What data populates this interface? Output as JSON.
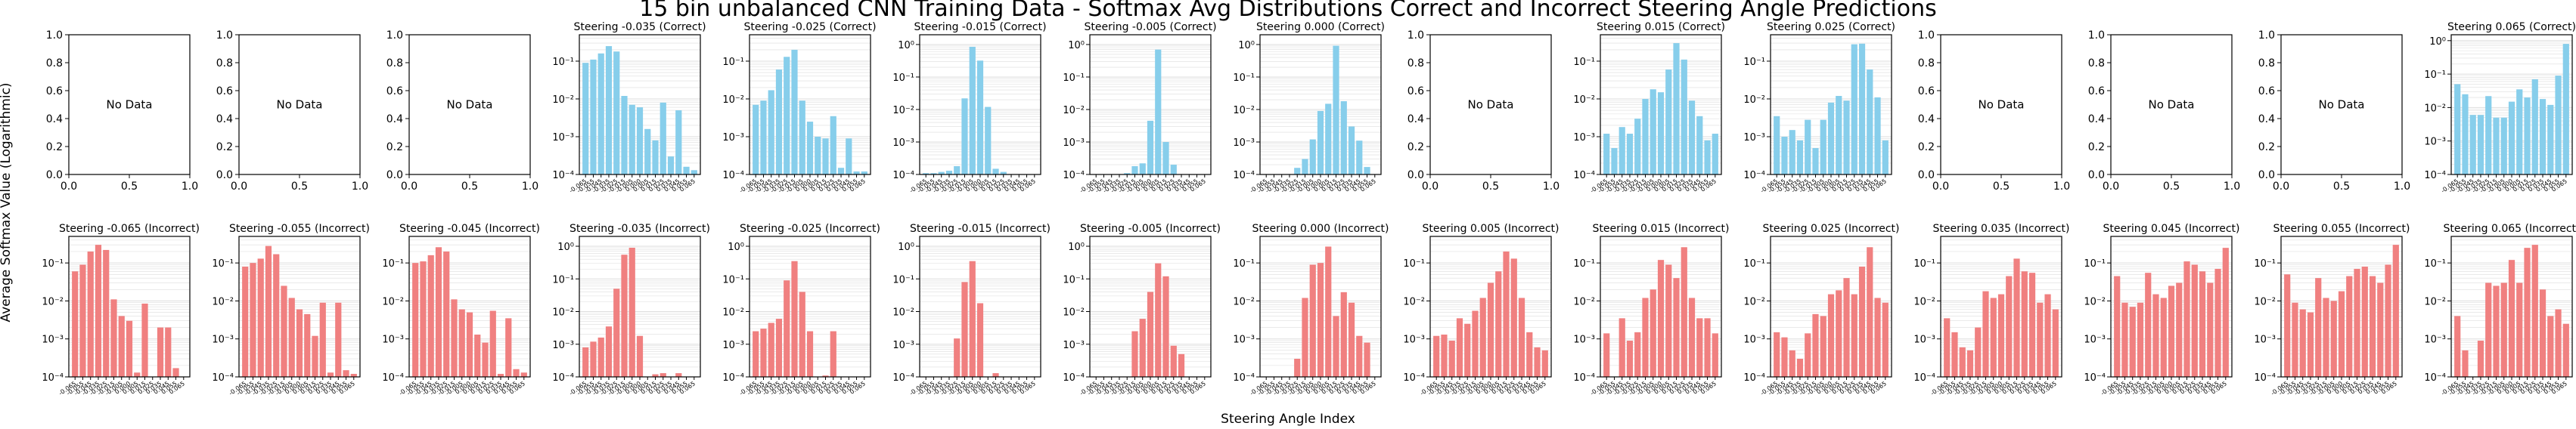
{
  "figure": {
    "title": "15 bin unbalanced CNN Training Data - Softmax Avg Distributions Correct and Incorrect Steering Angle Predictions",
    "xlabel": "Steering Angle Index",
    "ylabel": "Average Softmax Value (Logarithmic)",
    "no_data_text": "No Data",
    "correct_color": "#87ceeb",
    "incorrect_color": "#f08080",
    "empty_xticks": [
      "0.0",
      "0.5",
      "1.0"
    ],
    "empty_yticks": [
      "0.0",
      "0.2",
      "0.4",
      "0.6",
      "0.8",
      "1.0"
    ],
    "log_ticks": [
      "10⁰",
      "10⁻¹",
      "10⁻²",
      "10⁻³",
      "10⁻⁴"
    ]
  },
  "chart_data": [
    {
      "row": "correct",
      "type": "bar",
      "title": "",
      "no_data": true
    },
    {
      "row": "correct",
      "type": "bar",
      "title": "",
      "no_data": true
    },
    {
      "row": "correct",
      "type": "bar",
      "title": "",
      "no_data": true
    },
    {
      "row": "correct",
      "type": "bar",
      "title": "Steering -0.035 (Correct)",
      "yscale": "log",
      "ylim": [
        0.0001,
        0.5
      ],
      "categories": [
        "-0.065",
        "-0.055",
        "-0.045",
        "-0.035",
        "-0.025",
        "-0.015",
        "-0.005",
        "0.000",
        "0.005",
        "0.015",
        "0.025",
        "0.035",
        "0.045",
        "0.055",
        "0.065"
      ],
      "values": [
        0.09,
        0.11,
        0.16,
        0.25,
        0.18,
        0.012,
        0.007,
        0.006,
        0.0016,
        0.0008,
        0.008,
        0.0003,
        0.005,
        0.00016,
        0.00013
      ]
    },
    {
      "row": "correct",
      "type": "bar",
      "title": "Steering -0.025 (Correct)",
      "yscale": "log",
      "ylim": [
        0.0001,
        0.5
      ],
      "categories": [
        "-0.065",
        "-0.055",
        "-0.045",
        "-0.035",
        "-0.025",
        "-0.015",
        "-0.005",
        "0.000",
        "0.005",
        "0.015",
        "0.025",
        "0.035",
        "0.045",
        "0.055",
        "0.065"
      ],
      "values": [
        0.007,
        0.009,
        0.017,
        0.06,
        0.13,
        0.2,
        0.009,
        0.0025,
        0.001,
        0.0009,
        0.0035,
        0.00015,
        0.0009,
        0.00012,
        0.00012
      ]
    },
    {
      "row": "correct",
      "type": "bar",
      "title": "Steering -0.015 (Correct)",
      "yscale": "log",
      "ylim": [
        0.0001,
        2
      ],
      "categories": [
        "-0.065",
        "-0.055",
        "-0.045",
        "-0.035",
        "-0.025",
        "-0.015",
        "-0.005",
        "0.000",
        "0.005",
        "0.015",
        "0.025",
        "0.035",
        "0.045",
        "0.055",
        "0.065"
      ],
      "values": [
        0.00011,
        0.00011,
        0.00012,
        0.00013,
        0.00018,
        0.022,
        0.85,
        0.32,
        0.012,
        0.00015,
        0.00012,
        0.0001,
        0.0001,
        0.0001,
        0.0001
      ]
    },
    {
      "row": "correct",
      "type": "bar",
      "title": "Steering -0.005 (Correct)",
      "yscale": "log",
      "ylim": [
        0.0001,
        2
      ],
      "categories": [
        "-0.065",
        "-0.055",
        "-0.045",
        "-0.035",
        "-0.025",
        "-0.015",
        "-0.005",
        "0.000",
        "0.005",
        "0.015",
        "0.025",
        "0.035",
        "0.045",
        "0.055",
        "0.065"
      ],
      "values": [
        0.0001,
        0.0001,
        0.0001,
        0.0001,
        0.00011,
        0.00018,
        0.00022,
        0.0045,
        0.7,
        0.001,
        0.0002,
        0.0001,
        0.0001,
        0.0001,
        0.0001
      ]
    },
    {
      "row": "correct",
      "type": "bar",
      "title": "Steering 0.000 (Correct)",
      "yscale": "log",
      "ylim": [
        0.0001,
        2
      ],
      "categories": [
        "-0.065",
        "-0.055",
        "-0.045",
        "-0.035",
        "-0.025",
        "-0.015",
        "-0.005",
        "0.000",
        "0.005",
        "0.015",
        "0.025",
        "0.035",
        "0.045",
        "0.055",
        "0.065"
      ],
      "values": [
        0.0001,
        0.0001,
        0.0001,
        0.0001,
        0.00016,
        0.0003,
        0.0012,
        0.009,
        0.015,
        0.92,
        0.018,
        0.003,
        0.0011,
        0.00017,
        0.0001
      ]
    },
    {
      "row": "correct",
      "type": "bar",
      "title": "",
      "no_data": true
    },
    {
      "row": "correct",
      "type": "bar",
      "title": "Steering 0.015 (Correct)",
      "yscale": "log",
      "ylim": [
        0.0001,
        0.5
      ],
      "categories": [
        "-0.065",
        "-0.055",
        "-0.045",
        "-0.035",
        "-0.025",
        "-0.015",
        "-0.005",
        "0.000",
        "0.005",
        "0.015",
        "0.025",
        "0.035",
        "0.045",
        "0.055",
        "0.065"
      ],
      "values": [
        0.0012,
        0.0005,
        0.0018,
        0.0012,
        0.003,
        0.01,
        0.018,
        0.015,
        0.06,
        0.3,
        0.11,
        0.009,
        0.0035,
        0.0008,
        0.0012
      ]
    },
    {
      "row": "correct",
      "type": "bar",
      "title": "Steering 0.025 (Correct)",
      "yscale": "log",
      "ylim": [
        0.0001,
        0.5
      ],
      "categories": [
        "-0.065",
        "-0.055",
        "-0.045",
        "-0.035",
        "-0.025",
        "-0.015",
        "-0.005",
        "0.000",
        "0.005",
        "0.015",
        "0.025",
        "0.035",
        "0.045",
        "0.055",
        "0.065"
      ],
      "values": [
        0.0035,
        0.001,
        0.0015,
        0.0008,
        0.0028,
        0.0005,
        0.0028,
        0.008,
        0.012,
        0.009,
        0.28,
        0.29,
        0.06,
        0.011,
        0.0008
      ]
    },
    {
      "row": "correct",
      "type": "bar",
      "title": "",
      "no_data": true
    },
    {
      "row": "correct",
      "type": "bar",
      "title": "",
      "no_data": true
    },
    {
      "row": "correct",
      "type": "bar",
      "title": "",
      "no_data": true
    },
    {
      "row": "correct",
      "type": "bar",
      "title": "Steering 0.065 (Correct)",
      "yscale": "log",
      "ylim": [
        0.0001,
        1.5
      ],
      "categories": [
        "-0.065",
        "-0.055",
        "-0.045",
        "-0.035",
        "-0.025",
        "-0.015",
        "-0.005",
        "0.000",
        "0.005",
        "0.015",
        "0.025",
        "0.035",
        "0.045",
        "0.055",
        "0.065"
      ],
      "values": [
        0.05,
        0.025,
        0.006,
        0.006,
        0.022,
        0.005,
        0.005,
        0.015,
        0.035,
        0.02,
        0.07,
        0.018,
        0.012,
        0.09,
        0.8
      ]
    },
    {
      "row": "incorrect",
      "type": "bar",
      "title": "Steering -0.065 (Incorrect)",
      "yscale": "log",
      "ylim": [
        0.0001,
        0.5
      ],
      "categories": [
        "-0.065",
        "-0.055",
        "-0.045",
        "-0.035",
        "-0.025",
        "-0.015",
        "-0.005",
        "0.000",
        "0.005",
        "0.015",
        "0.025",
        "0.035",
        "0.045",
        "0.055",
        "0.065"
      ],
      "values": [
        0.06,
        0.09,
        0.2,
        0.3,
        0.22,
        0.011,
        0.004,
        0.003,
        0.00013,
        0.0085,
        0.0001,
        0.002,
        0.002,
        0.00017,
        0.0001
      ]
    },
    {
      "row": "incorrect",
      "type": "bar",
      "title": "Steering -0.055 (Incorrect)",
      "yscale": "log",
      "ylim": [
        0.0001,
        0.5
      ],
      "categories": [
        "-0.065",
        "-0.055",
        "-0.045",
        "-0.035",
        "-0.025",
        "-0.015",
        "-0.005",
        "0.000",
        "0.005",
        "0.015",
        "0.025",
        "0.035",
        "0.045",
        "0.055",
        "0.065"
      ],
      "values": [
        0.08,
        0.1,
        0.13,
        0.28,
        0.17,
        0.025,
        0.012,
        0.006,
        0.0045,
        0.0012,
        0.009,
        0.00013,
        0.009,
        0.00015,
        0.00012
      ]
    },
    {
      "row": "incorrect",
      "type": "bar",
      "title": "Steering -0.045 (Incorrect)",
      "yscale": "log",
      "ylim": [
        0.0001,
        0.5
      ],
      "categories": [
        "-0.065",
        "-0.055",
        "-0.045",
        "-0.035",
        "-0.025",
        "-0.015",
        "-0.005",
        "0.000",
        "0.005",
        "0.015",
        "0.025",
        "0.035",
        "0.045",
        "0.055",
        "0.065"
      ],
      "values": [
        0.1,
        0.11,
        0.16,
        0.26,
        0.2,
        0.011,
        0.006,
        0.005,
        0.0013,
        0.0008,
        0.0055,
        0.00012,
        0.0035,
        0.00016,
        0.00013
      ]
    },
    {
      "row": "incorrect",
      "type": "bar",
      "title": "Steering -0.035 (Incorrect)",
      "yscale": "log",
      "ylim": [
        0.0001,
        2
      ],
      "categories": [
        "-0.065",
        "-0.055",
        "-0.045",
        "-0.035",
        "-0.025",
        "-0.015",
        "-0.005",
        "0.000",
        "0.005",
        "0.015",
        "0.025",
        "0.035",
        "0.045",
        "0.055",
        "0.065"
      ],
      "values": [
        0.0008,
        0.0012,
        0.0016,
        0.0035,
        0.05,
        0.55,
        0.9,
        0.0018,
        0.0001,
        0.00012,
        0.00013,
        0.0001,
        0.00013,
        0.0001,
        0.0001
      ]
    },
    {
      "row": "incorrect",
      "type": "bar",
      "title": "Steering -0.025 (Incorrect)",
      "yscale": "log",
      "ylim": [
        0.0001,
        2
      ],
      "categories": [
        "-0.065",
        "-0.055",
        "-0.045",
        "-0.035",
        "-0.025",
        "-0.015",
        "-0.005",
        "0.000",
        "0.005",
        "0.015",
        "0.025",
        "0.035",
        "0.045",
        "0.055",
        "0.065"
      ],
      "values": [
        0.0025,
        0.003,
        0.0045,
        0.006,
        0.09,
        0.35,
        0.04,
        0.0025,
        0.0001,
        0.00011,
        0.0025,
        0.0001,
        0.0001,
        0.0001,
        0.0001
      ]
    },
    {
      "row": "incorrect",
      "type": "bar",
      "title": "Steering -0.015 (Incorrect)",
      "yscale": "log",
      "ylim": [
        0.0001,
        2
      ],
      "categories": [
        "-0.065",
        "-0.055",
        "-0.045",
        "-0.035",
        "-0.025",
        "-0.015",
        "-0.005",
        "0.000",
        "0.005",
        "0.015",
        "0.025",
        "0.035",
        "0.045",
        "0.055",
        "0.065"
      ],
      "values": [
        0.0001,
        0.0001,
        0.0001,
        0.0001,
        0.0015,
        0.08,
        0.35,
        0.018,
        0.0001,
        0.00013,
        0.0001,
        0.0001,
        0.0001,
        0.0001,
        0.0001
      ]
    },
    {
      "row": "incorrect",
      "type": "bar",
      "title": "Steering -0.005 (Incorrect)",
      "yscale": "log",
      "ylim": [
        0.0001,
        2
      ],
      "categories": [
        "-0.065",
        "-0.055",
        "-0.045",
        "-0.035",
        "-0.025",
        "-0.015",
        "-0.005",
        "0.000",
        "0.005",
        "0.015",
        "0.025",
        "0.035",
        "0.045",
        "0.055",
        "0.065"
      ],
      "values": [
        0.0001,
        0.0001,
        0.0001,
        0.0001,
        0.0001,
        0.0025,
        0.006,
        0.04,
        0.3,
        0.12,
        0.0009,
        0.0005,
        0.0001,
        0.0001,
        0.0001
      ]
    },
    {
      "row": "incorrect",
      "type": "bar",
      "title": "Steering 0.000 (Incorrect)",
      "yscale": "log",
      "ylim": [
        0.0001,
        0.5
      ],
      "categories": [
        "-0.065",
        "-0.055",
        "-0.045",
        "-0.035",
        "-0.025",
        "-0.015",
        "-0.005",
        "0.000",
        "0.005",
        "0.015",
        "0.025",
        "0.035",
        "0.045",
        "0.055",
        "0.065"
      ],
      "values": [
        0.0001,
        0.0001,
        0.0001,
        0.0001,
        0.0003,
        0.012,
        0.09,
        0.1,
        0.27,
        0.004,
        0.017,
        0.009,
        0.0012,
        0.0008,
        0.0001
      ]
    },
    {
      "row": "incorrect",
      "type": "bar",
      "title": "Steering 0.005 (Incorrect)",
      "yscale": "log",
      "ylim": [
        0.0001,
        0.5
      ],
      "categories": [
        "-0.065",
        "-0.055",
        "-0.045",
        "-0.035",
        "-0.025",
        "-0.015",
        "-0.005",
        "0.000",
        "0.005",
        "0.015",
        "0.025",
        "0.035",
        "0.045",
        "0.055",
        "0.065"
      ],
      "values": [
        0.0012,
        0.0013,
        0.0009,
        0.0035,
        0.0025,
        0.0055,
        0.012,
        0.03,
        0.06,
        0.2,
        0.13,
        0.012,
        0.0015,
        0.0006,
        0.0005
      ]
    },
    {
      "row": "incorrect",
      "type": "bar",
      "title": "Steering 0.015 (Incorrect)",
      "yscale": "log",
      "ylim": [
        0.0001,
        0.5
      ],
      "categories": [
        "-0.065",
        "-0.055",
        "-0.045",
        "-0.035",
        "-0.025",
        "-0.015",
        "-0.005",
        "0.000",
        "0.005",
        "0.015",
        "0.025",
        "0.035",
        "0.045",
        "0.055",
        "0.065"
      ],
      "values": [
        0.0014,
        0.0001,
        0.0035,
        0.0009,
        0.0015,
        0.012,
        0.02,
        0.12,
        0.09,
        0.04,
        0.26,
        0.012,
        0.0035,
        0.0035,
        0.0014
      ]
    },
    {
      "row": "incorrect",
      "type": "bar",
      "title": "Steering 0.025 (Incorrect)",
      "yscale": "log",
      "ylim": [
        0.0001,
        0.5
      ],
      "categories": [
        "-0.065",
        "-0.055",
        "-0.045",
        "-0.035",
        "-0.025",
        "-0.015",
        "-0.005",
        "0.000",
        "0.005",
        "0.015",
        "0.025",
        "0.035",
        "0.045",
        "0.055",
        "0.065"
      ],
      "values": [
        0.0015,
        0.0011,
        0.0005,
        0.0003,
        0.0014,
        0.0045,
        0.004,
        0.015,
        0.019,
        0.04,
        0.015,
        0.08,
        0.26,
        0.012,
        0.009
      ]
    },
    {
      "row": "incorrect",
      "type": "bar",
      "title": "Steering 0.035 (Incorrect)",
      "yscale": "log",
      "ylim": [
        0.0001,
        0.5
      ],
      "categories": [
        "-0.065",
        "-0.055",
        "-0.045",
        "-0.035",
        "-0.025",
        "-0.015",
        "-0.005",
        "0.000",
        "0.005",
        "0.015",
        "0.025",
        "0.035",
        "0.045",
        "0.055",
        "0.065"
      ],
      "values": [
        0.0035,
        0.0015,
        0.0006,
        0.0005,
        0.002,
        0.018,
        0.012,
        0.015,
        0.045,
        0.13,
        0.06,
        0.055,
        0.009,
        0.015,
        0.006
      ]
    },
    {
      "row": "incorrect",
      "type": "bar",
      "title": "Steering 0.045 (Incorrect)",
      "yscale": "log",
      "ylim": [
        0.0001,
        0.5
      ],
      "categories": [
        "-0.065",
        "-0.055",
        "-0.045",
        "-0.035",
        "-0.025",
        "-0.015",
        "-0.005",
        "0.000",
        "0.005",
        "0.015",
        "0.025",
        "0.035",
        "0.045",
        "0.055",
        "0.065"
      ],
      "values": [
        0.045,
        0.009,
        0.007,
        0.009,
        0.055,
        0.015,
        0.012,
        0.025,
        0.03,
        0.11,
        0.09,
        0.06,
        0.03,
        0.07,
        0.25
      ]
    },
    {
      "row": "incorrect",
      "type": "bar",
      "title": "Steering 0.055 (Incorrect)",
      "yscale": "log",
      "ylim": [
        0.0001,
        0.5
      ],
      "categories": [
        "-0.065",
        "-0.055",
        "-0.045",
        "-0.035",
        "-0.025",
        "-0.015",
        "-0.005",
        "0.000",
        "0.005",
        "0.015",
        "0.025",
        "0.035",
        "0.045",
        "0.055",
        "0.065"
      ],
      "values": [
        0.05,
        0.009,
        0.006,
        0.005,
        0.04,
        0.012,
        0.01,
        0.018,
        0.045,
        0.07,
        0.08,
        0.045,
        0.03,
        0.09,
        0.3
      ]
    },
    {
      "row": "incorrect",
      "type": "bar",
      "title": "Steering 0.065 (Incorrect)",
      "yscale": "log",
      "ylim": [
        0.0001,
        0.5
      ],
      "categories": [
        "-0.065",
        "-0.055",
        "-0.045",
        "-0.035",
        "-0.025",
        "-0.015",
        "-0.005",
        "0.000",
        "0.005",
        "0.015",
        "0.025",
        "0.035",
        "0.045",
        "0.055",
        "0.065"
      ],
      "values": [
        0.004,
        0.0005,
        0.0001,
        0.0009,
        0.03,
        0.025,
        0.03,
        0.12,
        0.03,
        0.25,
        0.3,
        0.02,
        0.004,
        0.006,
        0.0025
      ]
    }
  ]
}
